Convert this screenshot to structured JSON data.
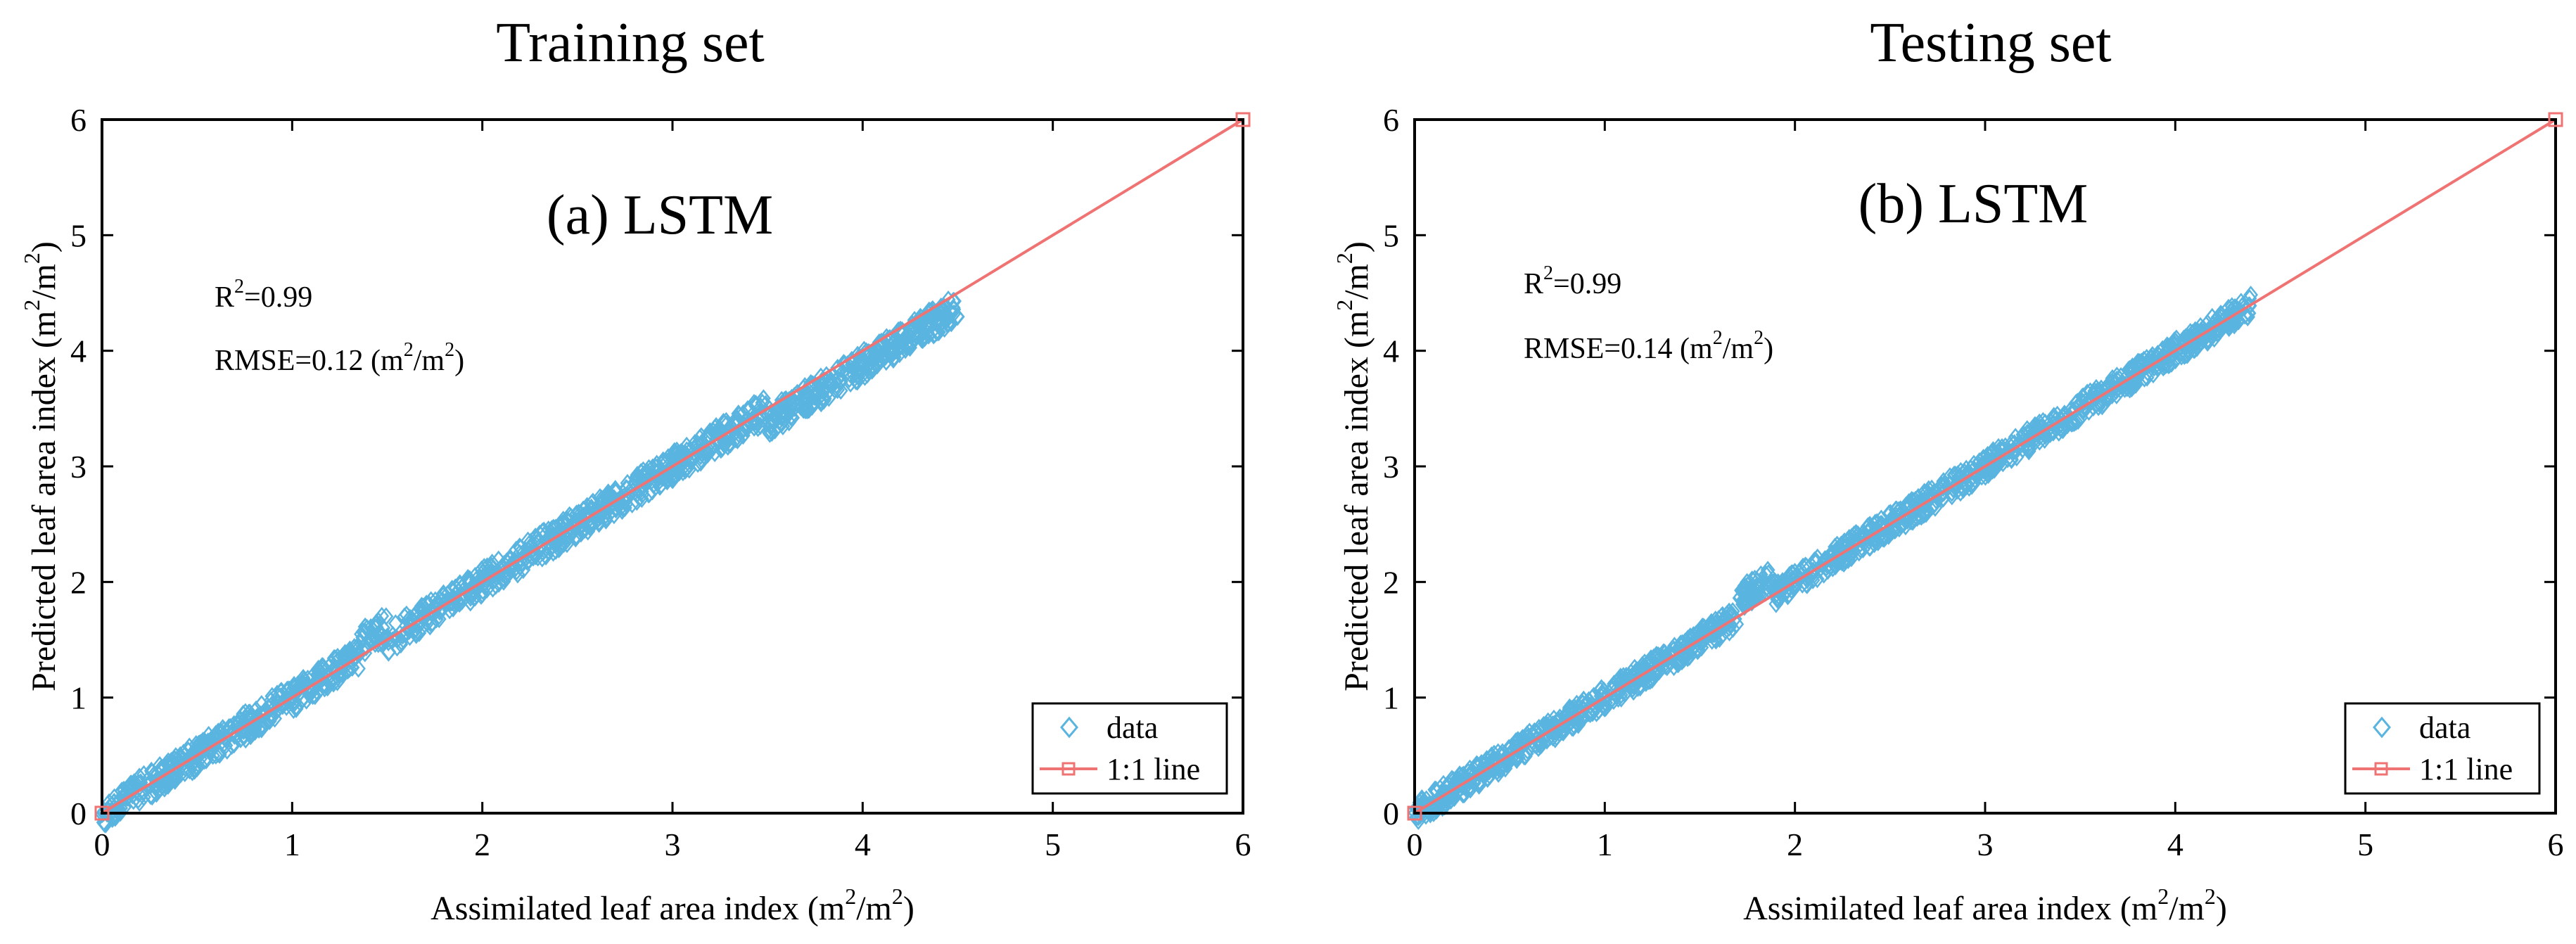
{
  "chart_data": [
    {
      "type": "scatter",
      "title": "Training set",
      "panel_label": "(a) LSTM",
      "xlabel": {
        "base": "Assimilated leaf area index (m",
        "sup1": "2",
        "mid": "/m",
        "sup2": "2",
        "end": ")"
      },
      "ylabel": {
        "base": "Predicted leaf area index (m",
        "sup1": "2",
        "mid": "/m",
        "sup2": "2",
        "end": ")"
      },
      "xlim": [
        0,
        6
      ],
      "ylim": [
        0,
        6
      ],
      "xticks": [
        0,
        1,
        2,
        3,
        4,
        5,
        6
      ],
      "yticks": [
        0,
        1,
        2,
        3,
        4,
        5,
        6
      ],
      "r2": {
        "prefix": "R",
        "sup": "2",
        "value": "=0.99"
      },
      "rmse": {
        "prefix": "RMSE=0.12 (m",
        "sup1": "2",
        "mid": "/m",
        "sup2": "2",
        "end": ")"
      },
      "legend": {
        "data_label": "data",
        "line_label": "1:1 line",
        "location": "bottom-right"
      },
      "series": [
        {
          "name": "data",
          "color": "#5ab4e0",
          "x_range": [
            0,
            4.5
          ],
          "spread": 0.12,
          "note": "dense band of diamond markers along the 1:1 line"
        },
        {
          "name": "1:1 line",
          "color": "#f07373",
          "x": [
            0,
            6
          ],
          "y": [
            0,
            6
          ]
        }
      ]
    },
    {
      "type": "scatter",
      "title": "Testing set",
      "panel_label": "(b) LSTM",
      "xlabel": {
        "base": "Assimilated leaf area index (m",
        "sup1": "2",
        "mid": "/m",
        "sup2": "2",
        "end": ")"
      },
      "ylabel": {
        "base": "Predicted leaf area index (m",
        "sup1": "2",
        "mid": "/m",
        "sup2": "2",
        "end": ")"
      },
      "xlim": [
        0,
        6
      ],
      "ylim": [
        0,
        6
      ],
      "xticks": [
        0,
        1,
        2,
        3,
        4,
        5,
        6
      ],
      "yticks": [
        0,
        1,
        2,
        3,
        4,
        5,
        6
      ],
      "r2": {
        "prefix": "R",
        "sup": "2",
        "value": "=0.99"
      },
      "rmse": {
        "prefix": "RMSE=0.14 (m",
        "sup1": "2",
        "mid": "/m",
        "sup2": "2",
        "end": ")"
      },
      "legend": {
        "data_label": "data",
        "line_label": "1:1 line",
        "location": "bottom-right"
      },
      "series": [
        {
          "name": "data",
          "color": "#5ab4e0",
          "x_range": [
            0,
            4.4
          ],
          "spread": 0.1,
          "note": "dense band of diamond markers along the 1:1 line"
        },
        {
          "name": "1:1 line",
          "color": "#f07373",
          "x": [
            0,
            6
          ],
          "y": [
            0,
            6
          ]
        }
      ]
    }
  ]
}
